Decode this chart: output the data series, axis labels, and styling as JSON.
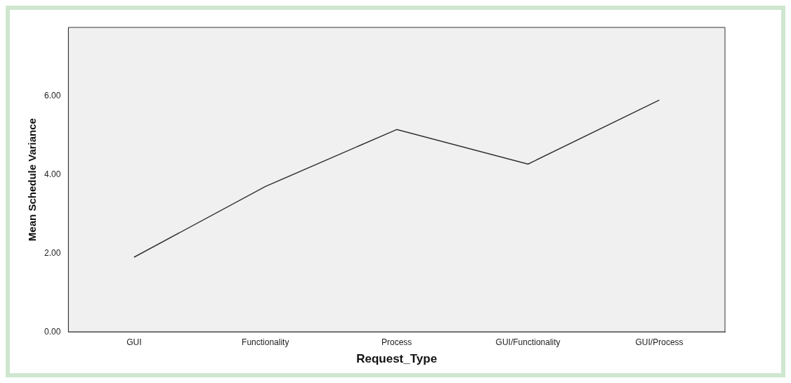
{
  "chart_data": {
    "type": "line",
    "xlabel": "Request_Type",
    "ylabel": "Mean Schedule Variance",
    "categories": [
      "GUI",
      "Functionality",
      "Process",
      "GUI/Functionality",
      "GUI/Process"
    ],
    "series": [
      {
        "color": "#333333",
        "values": [
          1.9,
          3.7,
          5.15,
          4.27,
          5.9
        ]
      }
    ],
    "ylim": [
      0,
      7.75
    ],
    "yticks": [
      {
        "value": 0,
        "label": "0.00"
      },
      {
        "value": 2,
        "label": "2.00"
      },
      {
        "value": 4,
        "label": "4.00"
      },
      {
        "value": 6,
        "label": "6.00"
      }
    ],
    "grid": false,
    "legend": false,
    "marker": "none",
    "line_style": "solid"
  }
}
